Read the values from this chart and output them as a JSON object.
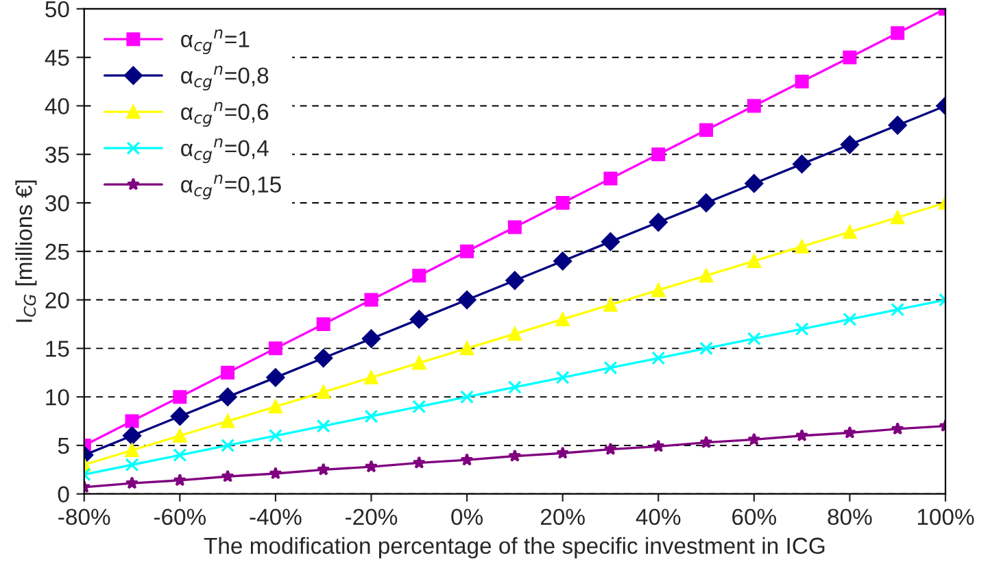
{
  "chart_data": {
    "type": "line",
    "xlabel": "The modification percentage of the specific investment in ICG",
    "ylabel": "I$_{CG}$ [millions €]",
    "x": [
      -80,
      -70,
      -60,
      -50,
      -40,
      -30,
      -20,
      -10,
      0,
      10,
      20,
      30,
      40,
      50,
      60,
      70,
      80,
      90,
      100
    ],
    "series": [
      {
        "name": "α$_{cg}$$^{n}$=1",
        "color": "#ff00ff",
        "marker": "square",
        "values": [
          5,
          7.5,
          10,
          12.5,
          15,
          17.5,
          20,
          22.5,
          25,
          27.5,
          30,
          32.5,
          35,
          37.5,
          40,
          42.5,
          45,
          47.5,
          50
        ]
      },
      {
        "name": "α$_{cg}$$^{n}$=0,8",
        "color": "#000080",
        "marker": "diamond",
        "values": [
          4,
          6,
          8,
          10,
          12,
          14,
          16,
          18,
          20,
          22,
          24,
          26,
          28,
          30,
          32,
          34,
          36,
          38,
          40
        ]
      },
      {
        "name": "α$_{cg}$$^{n}$=0,6",
        "color": "#ffff00",
        "marker": "triangle",
        "values": [
          3,
          4.5,
          6,
          7.5,
          9,
          10.5,
          12,
          13.5,
          15,
          16.5,
          18,
          19.5,
          21,
          22.5,
          24,
          25.5,
          27,
          28.5,
          30
        ]
      },
      {
        "name": "α$_{cg}$$^{n}$=0,4",
        "color": "#00ffff",
        "marker": "cross",
        "values": [
          2,
          3,
          4,
          5,
          6,
          7,
          8,
          9,
          10,
          11,
          12,
          13,
          14,
          15,
          16,
          17,
          18,
          19,
          20
        ]
      },
      {
        "name": "α$_{cg}$$^{n}$=0,15",
        "color": "#800080",
        "marker": "star",
        "values": [
          0.7,
          1.1,
          1.4,
          1.8,
          2.1,
          2.5,
          2.8,
          3.2,
          3.5,
          3.9,
          4.2,
          4.6,
          4.9,
          5.3,
          5.6,
          6.0,
          6.3,
          6.7,
          7.0
        ]
      }
    ],
    "xlim": [
      -80,
      100
    ],
    "xticks": [
      {
        "value": -80,
        "label": "-80%"
      },
      {
        "value": -60,
        "label": "-60%"
      },
      {
        "value": -40,
        "label": "-40%"
      },
      {
        "value": -20,
        "label": "-20%"
      },
      {
        "value": 0,
        "label": "0%"
      },
      {
        "value": 20,
        "label": "20%"
      },
      {
        "value": 40,
        "label": "40%"
      },
      {
        "value": 60,
        "label": "60%"
      },
      {
        "value": 80,
        "label": "80%"
      },
      {
        "value": 100,
        "label": "100%"
      }
    ],
    "ylim": [
      0,
      50
    ],
    "yticks": [
      0,
      5,
      10,
      15,
      20,
      25,
      30,
      35,
      40,
      45,
      50
    ],
    "grid": "y",
    "legend": "top left",
    "line_style": "solid"
  }
}
